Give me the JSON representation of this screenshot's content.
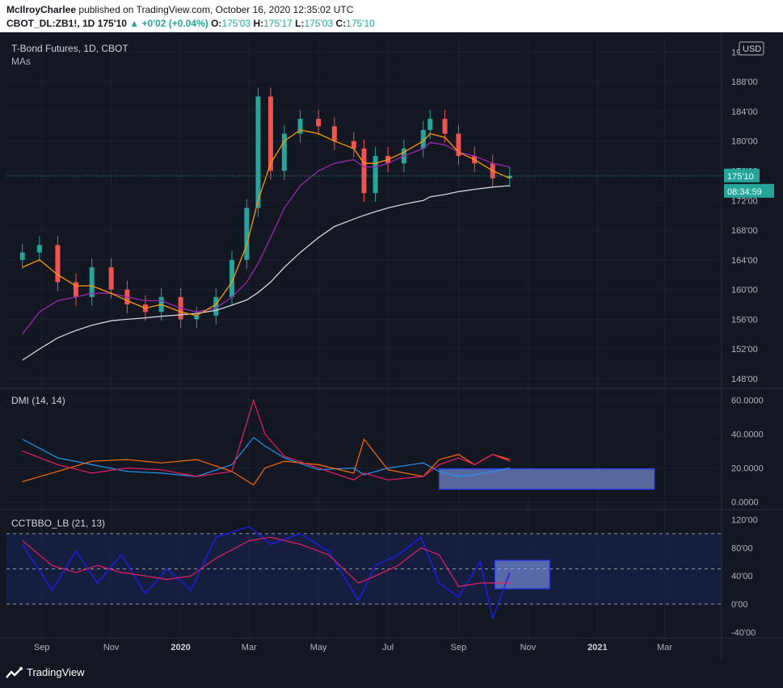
{
  "header": {
    "author": "McIlroyCharlee",
    "published_text": "published on TradingView.com, October 16, 2020 12:35:02 UTC",
    "symbol": "CBOT_DL:ZB1!, 1D",
    "last": "175'10",
    "change": "+0'02 (+0.04%)",
    "o_label": "O:",
    "o": "175'03",
    "h_label": "H:",
    "h": "175'17",
    "l_label": "L:",
    "l": "175'03",
    "c_label": "C:",
    "c": "175'10"
  },
  "footer": {
    "brand": "TradingView"
  },
  "colors": {
    "background": "#131722",
    "up": "#26a69a",
    "down": "#ef5350",
    "ma_fast": "#ff9800",
    "ma_mid": "#9c27b0",
    "ma_slow": "#d1d4dc",
    "dmi_plus": "#2196f3",
    "dmi_minus": "#ff6d00",
    "adx": "#e91e63",
    "osc": "#1a1ee6",
    "osc_signal": "#e91e63"
  },
  "chart_data": [
    {
      "type": "line",
      "title": "T-Bond Futures, 1D, CBOT",
      "subtitle": "MAs",
      "currency": "USD",
      "y_axis_ticks": [
        "192'00",
        "188'00",
        "184'00",
        "180'00",
        "176'00",
        "172'00",
        "168'00",
        "164'00",
        "160'00",
        "156'00",
        "152'00",
        "148'00"
      ],
      "ylim": [
        146.8,
        194.0
      ],
      "last_price_label": "175'10",
      "countdown_label": "08:34:59",
      "x_axis_ticks": [
        "Sep",
        "Nov",
        "2020",
        "Mar",
        "May",
        "Jul",
        "Sep",
        "Nov",
        "2021",
        "Mar"
      ],
      "price_x": [
        "2019-08-15",
        "2019-08-30",
        "2019-09-15",
        "2019-10-01",
        "2019-10-15",
        "2019-11-01",
        "2019-11-15",
        "2019-12-01",
        "2019-12-15",
        "2020-01-01",
        "2020-01-15",
        "2020-02-01",
        "2020-02-15",
        "2020-02-28",
        "2020-03-09",
        "2020-03-20",
        "2020-04-01",
        "2020-04-15",
        "2020-05-01",
        "2020-05-15",
        "2020-06-01",
        "2020-06-10",
        "2020-06-20",
        "2020-07-01",
        "2020-07-15",
        "2020-08-01",
        "2020-08-07",
        "2020-08-20",
        "2020-09-01",
        "2020-09-15",
        "2020-10-01",
        "2020-10-16"
      ],
      "price_close": [
        165,
        166,
        161,
        159,
        163,
        160,
        158,
        157,
        159,
        156,
        156.5,
        159,
        164,
        171,
        186,
        176,
        181,
        183,
        182,
        180,
        179,
        173,
        178,
        177,
        179,
        181.5,
        183,
        181,
        178,
        177,
        175,
        175.3
      ],
      "ma_fast_values": [
        163,
        164,
        162,
        160.5,
        160.5,
        159.5,
        158.5,
        157.5,
        158,
        157,
        156.5,
        158,
        161,
        166,
        172,
        177,
        180,
        181.5,
        181,
        180,
        179,
        177,
        177,
        177.5,
        178.5,
        180,
        181,
        180.5,
        178.5,
        177.5,
        176,
        175
      ],
      "ma_mid_values": [
        154,
        157,
        158.5,
        159,
        159.5,
        159.5,
        159,
        158.5,
        158.5,
        157.5,
        157,
        157.5,
        159,
        161,
        163.5,
        167,
        171,
        174,
        176,
        177,
        177.5,
        176.5,
        176.5,
        177,
        178,
        179,
        179.8,
        179.5,
        178.5,
        178,
        177,
        176.5
      ],
      "ma_slow_values": [
        150.5,
        152,
        153.5,
        154.5,
        155.2,
        155.8,
        156,
        156.2,
        156.4,
        156.6,
        156.8,
        157.2,
        157.9,
        158.6,
        159.6,
        161,
        163,
        165,
        167,
        168.5,
        169.5,
        170,
        170.5,
        171,
        171.5,
        172,
        172.5,
        172.8,
        173.2,
        173.5,
        173.8,
        174
      ]
    },
    {
      "type": "line",
      "title": "DMI (14, 14)",
      "y_axis_ticks": [
        "60.0000",
        "40.0000",
        "20.0000",
        "0.0000"
      ],
      "ylim": [
        -4,
        66
      ],
      "x": [
        "2019-08-15",
        "2019-09-15",
        "2019-10-15",
        "2019-11-15",
        "2019-12-15",
        "2020-01-15",
        "2020-02-15",
        "2020-03-05",
        "2020-03-15",
        "2020-04-01",
        "2020-05-01",
        "2020-06-01",
        "2020-06-10",
        "2020-07-01",
        "2020-08-01",
        "2020-08-15",
        "2020-09-01",
        "2020-09-15",
        "2020-10-01",
        "2020-10-16"
      ],
      "series": [
        {
          "values": [
            37,
            26,
            22,
            18,
            17,
            15,
            22,
            38,
            33,
            26,
            19,
            20,
            16,
            20,
            23,
            18,
            15,
            16,
            18,
            20
          ]
        },
        {
          "values": [
            12,
            18,
            24,
            25,
            23,
            25,
            18,
            10,
            20,
            24,
            22,
            17,
            37,
            19,
            15,
            25,
            28,
            22,
            28,
            25
          ]
        },
        {
          "values": [
            30,
            22,
            17,
            20,
            19,
            15,
            18,
            60,
            40,
            27,
            20,
            13,
            17,
            13,
            15,
            22,
            26,
            22,
            28,
            24
          ]
        }
      ],
      "highlight_box": {
        "x_start": "2020-08-15",
        "x_end": "2021-02-20",
        "y_low": 7.5,
        "y_high": 19.5
      }
    },
    {
      "type": "line",
      "title": "CCTBBO_LB (21, 13)",
      "y_axis_ticks": [
        "120'00",
        "80'00",
        "40'00",
        "0'00",
        "-40'00"
      ],
      "ylim": [
        -48,
        132
      ],
      "dashed_levels": [
        100,
        50,
        0
      ],
      "x": [
        "2019-08-15",
        "2019-09-10",
        "2019-10-01",
        "2019-10-20",
        "2019-11-10",
        "2019-12-01",
        "2019-12-20",
        "2020-01-10",
        "2020-02-01",
        "2020-03-01",
        "2020-03-20",
        "2020-04-15",
        "2020-05-10",
        "2020-06-05",
        "2020-06-20",
        "2020-07-10",
        "2020-07-30",
        "2020-08-15",
        "2020-09-01",
        "2020-09-20",
        "2020-10-01",
        "2020-10-16"
      ],
      "series": [
        {
          "values": [
            85,
            20,
            75,
            30,
            70,
            15,
            50,
            20,
            95,
            110,
            85,
            100,
            75,
            5,
            55,
            70,
            95,
            30,
            10,
            60,
            -20,
            45
          ]
        },
        {
          "values": [
            90,
            55,
            45,
            55,
            45,
            40,
            35,
            40,
            65,
            90,
            95,
            85,
            70,
            30,
            40,
            55,
            80,
            70,
            25,
            30,
            30,
            30
          ]
        }
      ],
      "highlight_box": {
        "x_start": "2020-10-03",
        "x_end": "2020-11-20",
        "y_low": 22,
        "y_high": 62
      }
    }
  ]
}
